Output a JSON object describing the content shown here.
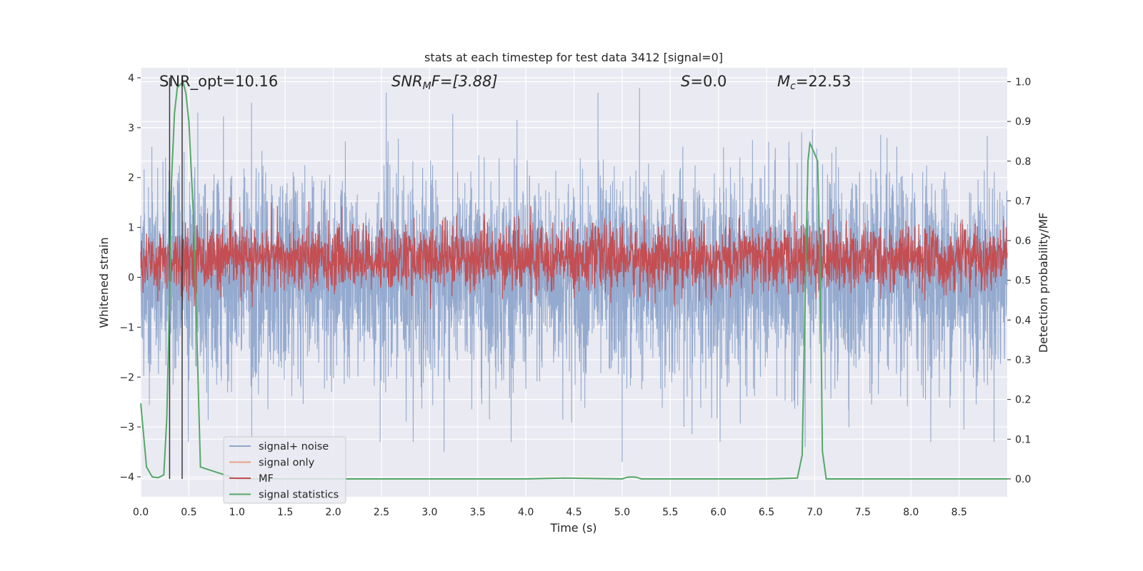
{
  "chart_data": {
    "type": "line",
    "title": "stats at each timestep for test data 3412 [signal=0]",
    "xlabel": "Time (s)",
    "ylabel_left": "Whitened strain",
    "ylabel_right": "Detection probability/MF",
    "xlim": [
      0,
      9.0
    ],
    "ylim_left": [
      -4.4,
      4.2
    ],
    "ylim_right": [
      -0.045,
      1.035
    ],
    "x_ticks": [
      "0.0",
      "0.5",
      "1.0",
      "1.5",
      "2.0",
      "2.5",
      "3.0",
      "3.5",
      "4.0",
      "4.5",
      "5.0",
      "5.5",
      "6.0",
      "6.5",
      "7.0",
      "7.5",
      "8.0",
      "8.5"
    ],
    "y_ticks_left": [
      "4",
      "3",
      "2",
      "1",
      "0",
      "−1",
      "−2",
      "−3",
      "−4"
    ],
    "y_ticks_right": [
      "1.0",
      "0.9",
      "0.8",
      "0.7",
      "0.6",
      "0.5",
      "0.4",
      "0.3",
      "0.2",
      "0.1",
      "0.0"
    ],
    "annotations": {
      "snr_opt": "SNR_opt=10.16",
      "snr_mf_main": "SNR",
      "snr_mf_sub": "M",
      "snr_mf_rest": "F=[3.88]",
      "s_main": "S",
      "s_rest": "=0.0",
      "mc_main": "M",
      "mc_sub": "c",
      "mc_rest": "=22.53"
    },
    "vertical_markers_s": [
      0.3,
      0.43
    ],
    "series": [
      {
        "name": "signal+ noise",
        "color": "#8fa6cc",
        "description": "whitened strain noise, approx std 1.0, spikes up to about 3.8 and down to about -3.5",
        "noise_std": 1.0,
        "notable_spikes": [
          {
            "t": 1.15,
            "v": 3.5
          },
          {
            "t": 2.55,
            "v": 3.7
          },
          {
            "t": 4.75,
            "v": 3.7
          },
          {
            "t": 5.18,
            "v": 3.8
          },
          {
            "t": 3.15,
            "v": -3.5
          },
          {
            "t": 5.0,
            "v": -3.7
          },
          {
            "t": 6.9,
            "v": -3.4
          },
          {
            "t": 8.55,
            "v": -3.05
          }
        ]
      },
      {
        "name": "signal only",
        "color": "#e8a387",
        "description": "flat near zero, not visible behind other traces"
      },
      {
        "name": "MF",
        "color": "#c44e52",
        "description": "matched filter output on right axis, band roughly between 0.5 and 0.62",
        "center": 0.555,
        "spread": 0.04
      },
      {
        "name": "signal statistics",
        "color": "#55a868",
        "axis": "right",
        "x": [
          0.0,
          0.06,
          0.12,
          0.18,
          0.24,
          0.27,
          0.3,
          0.32,
          0.35,
          0.38,
          0.4,
          0.42,
          0.44,
          0.47,
          0.5,
          0.55,
          0.62,
          1.0,
          2.0,
          3.0,
          4.0,
          4.4,
          5.0,
          5.05,
          5.1,
          5.15,
          5.2,
          6.0,
          6.5,
          6.82,
          6.87,
          6.9,
          6.93,
          6.95,
          6.98,
          7.03,
          7.06,
          7.08,
          7.12,
          7.2,
          8.0,
          9.0
        ],
        "y": [
          0.19,
          0.03,
          0.005,
          0.003,
          0.01,
          0.15,
          0.45,
          0.75,
          0.92,
          0.985,
          0.99,
          0.995,
          1.0,
          0.97,
          0.9,
          0.65,
          0.03,
          0.0,
          0.0,
          0.0,
          0.0,
          0.002,
          0.0,
          0.004,
          0.005,
          0.004,
          0.0,
          0.0,
          0.0,
          0.002,
          0.06,
          0.45,
          0.8,
          0.845,
          0.83,
          0.8,
          0.5,
          0.07,
          0.0,
          0.0,
          0.0,
          0.0
        ]
      }
    ],
    "legend": {
      "placement": "lower-left",
      "entries": [
        {
          "label": "signal+ noise",
          "color": "#8fa6cc"
        },
        {
          "label": "signal only",
          "color": "#e8a387"
        },
        {
          "label": "MF",
          "color": "#c44e52"
        },
        {
          "label": "signal statistics",
          "color": "#55a868"
        }
      ]
    }
  },
  "colors": {
    "plot_bg": "#eaeaf2",
    "grid": "#ffffff",
    "text": "#262626",
    "marker": "#3a3a3a"
  }
}
